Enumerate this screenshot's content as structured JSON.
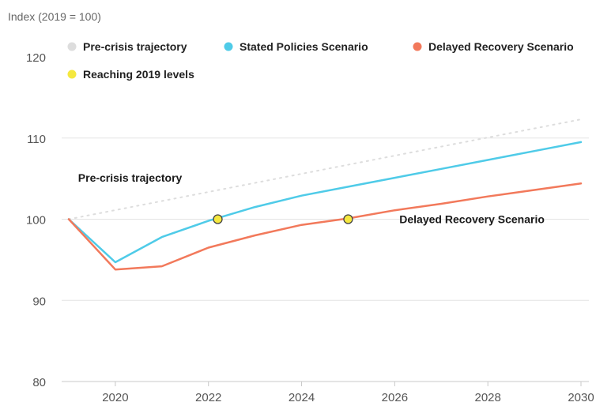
{
  "chart_data": {
    "type": "line",
    "title": "",
    "ylabel": "Index (2019 = 100)",
    "xlabel": "",
    "ylim": [
      80,
      120
    ],
    "xlim": [
      2019,
      2030
    ],
    "yticks": [
      80,
      90,
      100,
      110,
      120
    ],
    "xticks": [
      2020,
      2022,
      2024,
      2026,
      2028,
      2030
    ],
    "grid": "horizontal",
    "legend_position": "top",
    "legend": [
      {
        "name": "Pre-crisis trajectory",
        "color": "#dddddd"
      },
      {
        "name": "Stated Policies Scenario",
        "color": "#4fcbe8"
      },
      {
        "name": "Delayed Recovery Scenario",
        "color": "#f2795b"
      },
      {
        "name": "Reaching 2019 levels",
        "color": "#f5e83f"
      }
    ],
    "series": [
      {
        "name": "Pre-crisis trajectory",
        "color": "#dddddd",
        "style": "dotted",
        "x": [
          2019,
          2030
        ],
        "values": [
          100,
          112.3
        ]
      },
      {
        "name": "Stated Policies Scenario",
        "color": "#4fcbe8",
        "style": "solid",
        "x": [
          2019,
          2020,
          2021,
          2022,
          2023,
          2024,
          2025,
          2026,
          2027,
          2028,
          2029,
          2030
        ],
        "values": [
          100,
          94.7,
          97.8,
          99.8,
          101.5,
          102.9,
          104.0,
          105.1,
          106.2,
          107.3,
          108.4,
          109.5
        ]
      },
      {
        "name": "Delayed Recovery Scenario",
        "color": "#f2795b",
        "style": "solid",
        "x": [
          2019,
          2020,
          2021,
          2022,
          2023,
          2024,
          2025,
          2026,
          2027,
          2028,
          2029,
          2030
        ],
        "values": [
          100,
          93.8,
          94.2,
          96.5,
          98.0,
          99.3,
          100.1,
          101.1,
          101.9,
          102.8,
          103.6,
          104.4
        ]
      }
    ],
    "markers": [
      {
        "name": "Reaching 2019 levels",
        "series": "Stated Policies Scenario",
        "x": 2022.2,
        "y": 100
      },
      {
        "name": "Reaching 2019 levels",
        "series": "Delayed Recovery Scenario",
        "x": 2025.0,
        "y": 100
      }
    ],
    "annotations": [
      {
        "text": "Pre-crisis trajectory",
        "x": 2019.2,
        "y": 104.6
      },
      {
        "text": "Delayed Recovery Scenario",
        "x": 2026.1,
        "y": 99.5
      }
    ]
  }
}
